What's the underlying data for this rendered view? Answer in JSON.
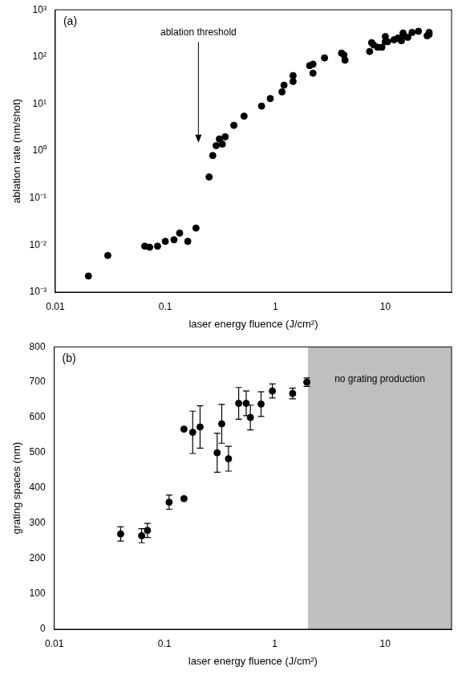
{
  "chart_data": [
    {
      "type": "scatter",
      "panel_label": "(a)",
      "x_label": "laser energy fluence (J/cm²)",
      "y_label": "ablation rate (nm/shot)",
      "log": true,
      "grid": false,
      "color": "#000000",
      "marker": "circle",
      "xlim": [
        0.01,
        40
      ],
      "xticks": [
        0.01,
        0.1,
        1,
        10
      ],
      "ylim": [
        0.001,
        1000
      ],
      "yticks": [
        {
          "value": 0.001,
          "label": "10⁻³"
        },
        {
          "value": 0.01,
          "label": "10⁻²"
        },
        {
          "value": 0.1,
          "label": "10⁻¹"
        },
        {
          "value": 1,
          "label": "10⁰"
        },
        {
          "value": 10,
          "label": "10¹"
        },
        {
          "value": 100,
          "label": "10²"
        },
        {
          "value": 1000,
          "label": "10³"
        }
      ],
      "x": [
        0.02,
        0.03,
        0.065,
        0.072,
        0.085,
        0.1,
        0.12,
        0.135,
        0.16,
        0.19,
        0.25,
        0.27,
        0.29,
        0.31,
        0.33,
        0.35,
        0.42,
        0.52,
        0.75,
        0.9,
        1.15,
        1.2,
        1.45,
        1.45,
        2.05,
        2.2,
        2.2,
        2.8,
        4.0,
        4.2,
        4.3,
        7.2,
        7.5,
        7.8,
        8.5,
        9.3,
        10,
        10,
        10.5,
        12,
        13,
        14,
        14.5,
        14.5,
        16,
        17.5,
        20,
        24,
        25,
        25
      ],
      "values": [
        0.0022,
        0.006,
        0.0095,
        0.009,
        0.0095,
        0.012,
        0.013,
        0.018,
        0.012,
        0.023,
        0.28,
        0.8,
        1.3,
        1.8,
        1.4,
        2.0,
        3.5,
        5.5,
        9,
        13,
        18,
        25,
        30,
        40,
        65,
        70,
        45,
        95,
        120,
        110,
        85,
        130,
        200,
        180,
        160,
        160,
        270,
        210,
        210,
        230,
        250,
        220,
        320,
        280,
        260,
        330,
        350,
        280,
        330,
        300
      ],
      "annotations": [
        {
          "text": "ablation threshold",
          "x": 0.2,
          "y": 1.5
        }
      ]
    },
    {
      "type": "scatter",
      "panel_label": "(b)",
      "x_label": "laser energy fluence (J/cm²)",
      "y_label": "grating spaces (nm)",
      "log": "x",
      "grid": false,
      "color": "#000000",
      "marker": "circle",
      "xlim": [
        0.01,
        40
      ],
      "xticks": [
        0.01,
        0.1,
        1,
        10
      ],
      "ylim": [
        0,
        800
      ],
      "yticks": [
        0,
        100,
        200,
        300,
        400,
        500,
        600,
        700,
        800
      ],
      "x": [
        0.04,
        0.062,
        0.07,
        0.11,
        0.15,
        0.15,
        0.18,
        0.21,
        0.3,
        0.33,
        0.38,
        0.47,
        0.55,
        0.6,
        0.75,
        0.95,
        1.45,
        1.95
      ],
      "values": [
        270,
        265,
        280,
        360,
        370,
        567,
        558,
        573,
        500,
        582,
        483,
        640,
        640,
        600,
        638,
        675,
        668,
        700
      ],
      "error": [
        20,
        20,
        20,
        20,
        null,
        null,
        60,
        60,
        55,
        55,
        35,
        45,
        35,
        35,
        35,
        20,
        15,
        12
      ],
      "shaded_region": {
        "x": [
          2,
          40
        ],
        "label": "no grating production",
        "color": "#bfbfbf"
      }
    }
  ]
}
